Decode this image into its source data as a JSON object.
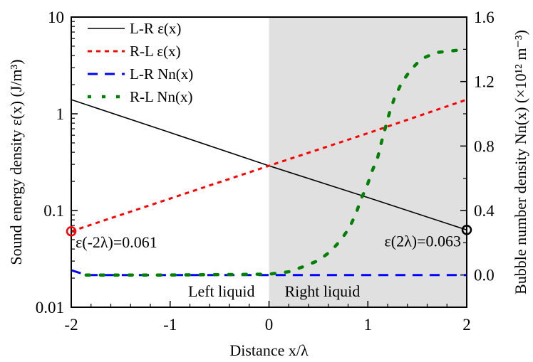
{
  "chart_data": {
    "type": "line",
    "xlabel": "Distance x/λ",
    "ylabel_left": "Sound energy density ε(x) (J/m³)",
    "ylabel_right": "Bubble number density Nn(x) (×10¹² m⁻³)",
    "xlim": [
      -2,
      2
    ],
    "ylim_left": [
      0.01,
      10
    ],
    "yscale_left": "log",
    "ylim_right": [
      -0.2,
      1.6
    ],
    "x_ticks": [
      "-2",
      "-1",
      "0",
      "1",
      "2"
    ],
    "y_left_ticks": [
      "0.01",
      "0.1",
      "1",
      "10"
    ],
    "y_right_ticks": [
      "0.0",
      "0.4",
      "0.8",
      "1.2",
      "1.6"
    ],
    "legend_position": "top-left",
    "regions": [
      {
        "label": "Left liquid",
        "x_range": [
          -2,
          0
        ],
        "color": "#ffffff"
      },
      {
        "label": "Right liquid",
        "x_range": [
          0,
          2
        ],
        "color": "#e0e0e0"
      }
    ],
    "annotations": [
      {
        "text": "ε(-2λ)=0.061",
        "x": -2,
        "y": 0.061,
        "color": "#ff0000"
      },
      {
        "text": "ε(2λ)=0.063",
        "x": 2,
        "y": 0.063,
        "color": "#000000"
      }
    ],
    "series": [
      {
        "name": "L-R ε(x)",
        "axis": "left",
        "color": "#000000",
        "style": "solid",
        "x": [
          -2,
          -1,
          0,
          1,
          2
        ],
        "y": [
          1.4,
          0.64,
          0.29,
          0.136,
          0.063
        ]
      },
      {
        "name": "R-L ε(x)",
        "axis": "left",
        "color": "#ff0000",
        "style": "dotted",
        "x": [
          -2,
          -1,
          0,
          1,
          2
        ],
        "y": [
          0.061,
          0.133,
          0.29,
          0.63,
          1.4
        ]
      },
      {
        "name": "L-R Nn(x)",
        "axis": "right",
        "color": "#0000ff",
        "style": "dashed",
        "x": [
          -2,
          -1.9,
          -1.85,
          -1,
          0,
          1,
          2
        ],
        "y": [
          0.03,
          0.01,
          0.0,
          0.0,
          0.0,
          0.0,
          0.0
        ]
      },
      {
        "name": "R-L Nn(x)",
        "axis": "right",
        "color": "#008000",
        "style": "dotted",
        "x": [
          -1.85,
          -1,
          0,
          0.2,
          0.34,
          0.5,
          0.63,
          0.73,
          0.81,
          0.88,
          0.93,
          0.99,
          1.04,
          1.1,
          1.14,
          1.18,
          1.22,
          1.27,
          1.34,
          1.43,
          1.54,
          1.69,
          1.84,
          2.0
        ],
        "y": [
          0.0,
          0.0,
          0.005,
          0.02,
          0.05,
          0.09,
          0.15,
          0.22,
          0.29,
          0.38,
          0.47,
          0.55,
          0.64,
          0.73,
          0.83,
          0.92,
          1.01,
          1.1,
          1.19,
          1.27,
          1.34,
          1.38,
          1.39,
          1.4
        ]
      }
    ]
  }
}
